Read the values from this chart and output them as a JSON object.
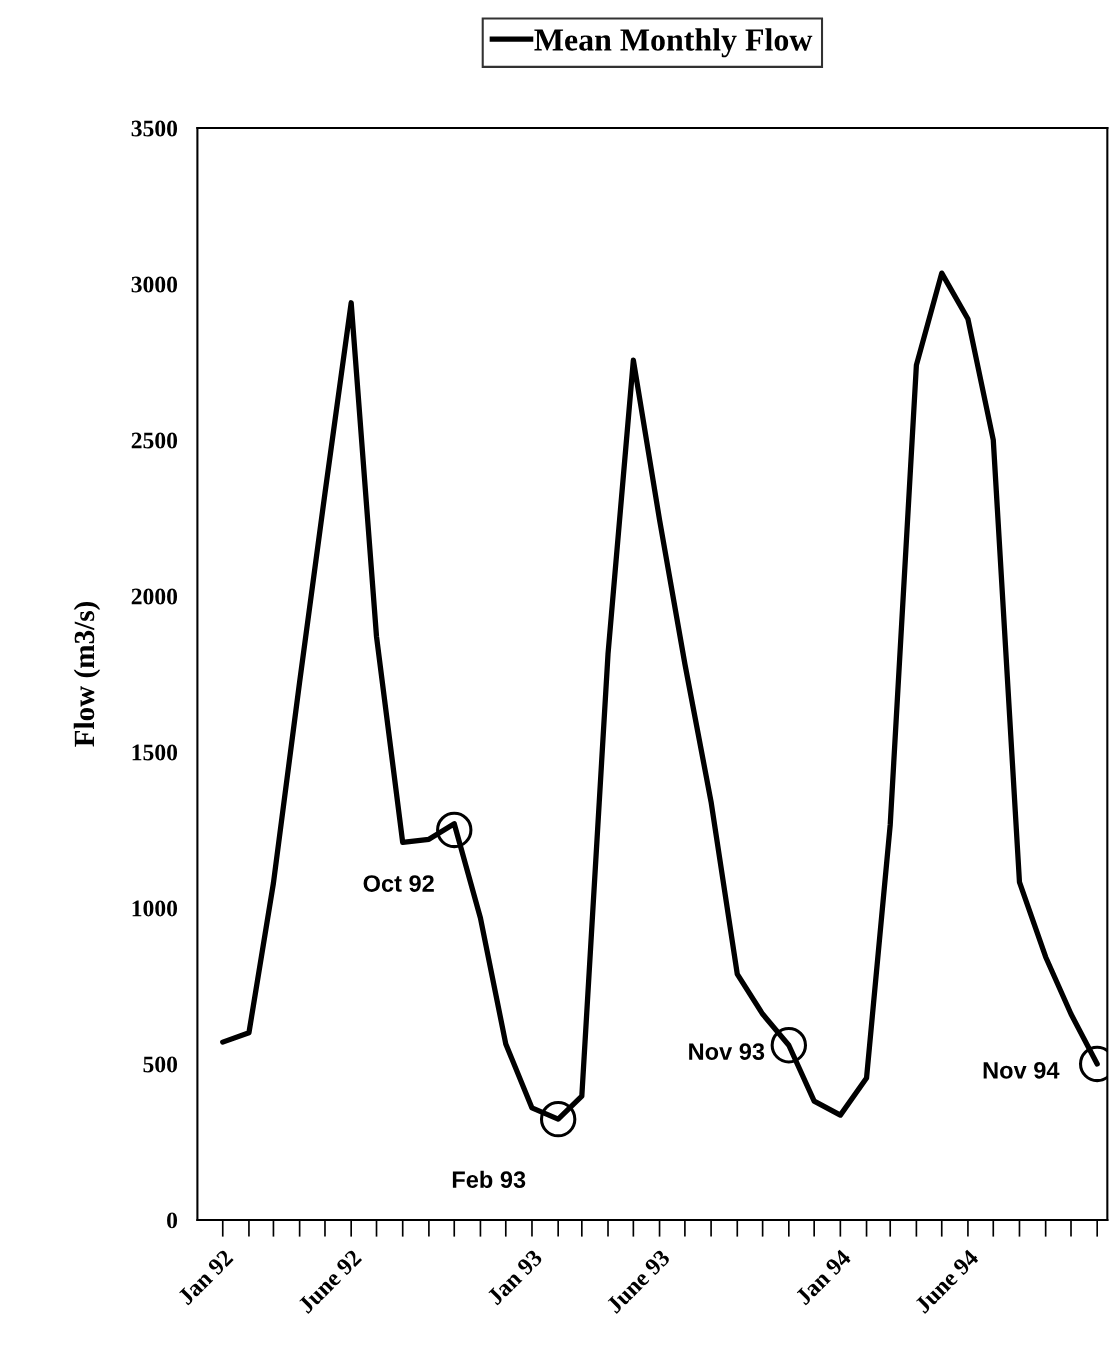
{
  "chart_data": {
    "type": "line",
    "ylabel": "Flow (m3/s)",
    "legend": "top",
    "x": [
      "1992-01",
      "1992-02",
      "1992-03",
      "1992-04",
      "1992-05",
      "1992-06",
      "1992-07",
      "1992-08",
      "1992-09",
      "1992-10",
      "1992-11",
      "1992-12",
      "1993-01",
      "1993-02",
      "1993-03",
      "1993-04",
      "1993-05",
      "1993-06",
      "1993-07",
      "1993-08",
      "1993-09",
      "1993-10",
      "1993-11",
      "1993-12",
      "1994-01",
      "1994-02",
      "1994-03",
      "1994-04",
      "1994-05",
      "1994-06",
      "1994-07",
      "1994-08",
      "1994-09",
      "1994-10",
      "1994-11"
    ],
    "series": [
      {
        "name": "Mean Monthly Flow",
        "color": "#000000",
        "values": [
          570,
          600,
          1080,
          1725,
          2330,
          2940,
          1870,
          1210,
          1220,
          1270,
          968,
          564,
          359,
          323,
          397,
          1814,
          2756,
          2244,
          1782,
          1340,
          788,
          660,
          560,
          381,
          336,
          455,
          1266,
          2740,
          3035,
          2888,
          2500,
          1083,
          843,
          660,
          500
        ]
      }
    ],
    "marker": "none",
    "line_style": "solid",
    "xlim": [
      "1991-12-02",
      "1994-11-13"
    ],
    "xticks": [
      {
        "value": "1992-01",
        "label": "Jan 92"
      },
      {
        "value": "1992-06",
        "label": "June 92"
      },
      {
        "value": "1993-01",
        "label": "Jan 93"
      },
      {
        "value": "1993-06",
        "label": "June 93"
      },
      {
        "value": "1994-01",
        "label": "Jan 94"
      },
      {
        "value": "1994-06",
        "label": "June 94"
      }
    ],
    "ylim": [
      0,
      3500
    ],
    "yticks": [
      0,
      500,
      1000,
      1500,
      2000,
      2500,
      3000,
      3500
    ],
    "grid": false,
    "annotations": [
      {
        "text": "Oct 92",
        "x": "1992-10",
        "y": 1250
      },
      {
        "text": "Feb 93",
        "x": "1993-02",
        "y": 323
      },
      {
        "text": "Nov 93",
        "x": "1993-11",
        "y": 560
      },
      {
        "text": "Nov 94",
        "x": "1994-11",
        "y": 500
      }
    ]
  }
}
